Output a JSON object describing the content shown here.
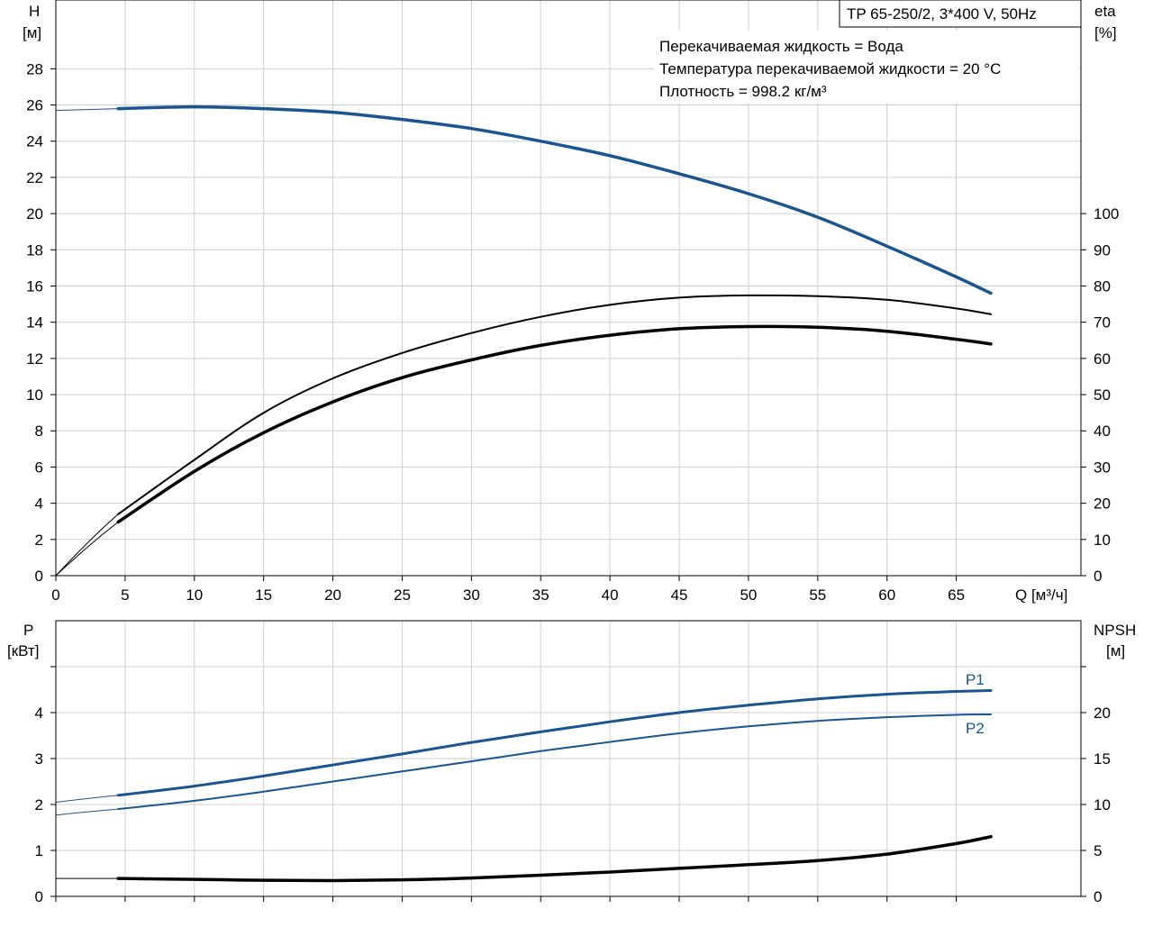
{
  "title_box": "TP 65-250/2, 3*400 V, 50Hz",
  "info_lines": [
    "Перекачиваемая жидкость = Вода",
    "Температура перекачиваемой жидкости = 20 °C",
    "Плотность = 998.2 кг/м³"
  ],
  "colors": {
    "blue": "#1a5590",
    "black": "#000000",
    "grid": "#cfcfcf"
  },
  "chart_data": [
    {
      "type": "line",
      "title": "",
      "x_axis": {
        "label": "Q [м³/ч]",
        "range": [
          0,
          74
        ],
        "ticks": [
          0,
          5,
          10,
          15,
          20,
          25,
          30,
          35,
          40,
          45,
          50,
          55,
          60,
          65
        ]
      },
      "y_axis_left": {
        "label_line1": "H",
        "label_line2": "[м]",
        "range": [
          0,
          31.8
        ],
        "ticks": [
          0,
          2,
          4,
          6,
          8,
          10,
          12,
          14,
          16,
          18,
          20,
          22,
          24,
          26,
          28
        ]
      },
      "y_axis_right": {
        "label_line1": "eta",
        "label_line2": "[%]",
        "range": [
          0,
          159
        ],
        "ticks": [
          0,
          10,
          20,
          30,
          40,
          50,
          60,
          70,
          80,
          90,
          100
        ]
      },
      "grid": true,
      "series": [
        {
          "axis": "left",
          "color": "#1a5590",
          "width": 3.5,
          "thin_lead": true,
          "x": [
            4.5,
            10,
            15,
            20,
            25,
            30,
            35,
            40,
            45,
            50,
            55,
            60,
            65,
            67.5
          ],
          "y": [
            25.8,
            25.9,
            25.8,
            25.6,
            25.2,
            24.7,
            24.0,
            23.2,
            22.2,
            21.1,
            19.8,
            18.2,
            16.5,
            15.6
          ],
          "lead_from": [
            0,
            25.7
          ]
        },
        {
          "axis": "right",
          "color": "#000000",
          "width": 2,
          "thin_lead": true,
          "x": [
            4.5,
            10,
            15,
            20,
            25,
            30,
            35,
            40,
            45,
            50,
            55,
            60,
            65,
            67.5
          ],
          "y": [
            17,
            32,
            45,
            54.5,
            61.5,
            67,
            71.5,
            74.8,
            76.8,
            77.4,
            77.2,
            76.2,
            73.8,
            72.2
          ],
          "lead_from": [
            0,
            0
          ]
        },
        {
          "axis": "right",
          "color": "#000000",
          "width": 3.5,
          "thin_lead": true,
          "x": [
            4.5,
            10,
            15,
            20,
            25,
            30,
            35,
            40,
            45,
            50,
            55,
            60,
            65,
            67.5
          ],
          "y": [
            14.8,
            28.8,
            39.5,
            48,
            54.7,
            59.6,
            63.6,
            66.4,
            68.2,
            68.8,
            68.6,
            67.5,
            65.3,
            64.0
          ],
          "lead_from": [
            0,
            0
          ]
        }
      ]
    },
    {
      "type": "line",
      "title": "",
      "x_axis": {
        "range": [
          0,
          74
        ],
        "ticks": [
          0,
          5,
          10,
          15,
          20,
          25,
          30,
          35,
          40,
          45,
          50,
          55,
          60,
          65
        ]
      },
      "y_axis_left": {
        "label_line1": "P",
        "label_line2": "[кВт]",
        "range": [
          0,
          6
        ],
        "ticks": [
          0,
          1,
          2,
          3,
          4
        ],
        "minor_ticks": [
          5
        ]
      },
      "y_axis_right": {
        "label_line1": "NPSH",
        "label_line2": "[м]",
        "range": [
          0,
          30
        ],
        "ticks": [
          0,
          5,
          10,
          15,
          20
        ],
        "minor_ticks": [
          25
        ]
      },
      "grid": true,
      "series": [
        {
          "name": "P1",
          "axis": "left",
          "color": "#1a5590",
          "width": 3,
          "thin_lead": true,
          "x": [
            4.5,
            10,
            15,
            20,
            25,
            30,
            35,
            40,
            45,
            50,
            55,
            60,
            65,
            67.5
          ],
          "y": [
            2.2,
            2.4,
            2.62,
            2.86,
            3.1,
            3.35,
            3.58,
            3.8,
            4.0,
            4.16,
            4.3,
            4.4,
            4.46,
            4.48
          ],
          "lead_from": [
            0,
            2.05
          ]
        },
        {
          "name": "P2",
          "axis": "left",
          "color": "#1a5590",
          "width": 2,
          "thin_lead": true,
          "x": [
            4.5,
            10,
            15,
            20,
            25,
            30,
            35,
            40,
            45,
            50,
            55,
            60,
            65,
            67.5
          ],
          "y": [
            1.9,
            2.08,
            2.28,
            2.5,
            2.72,
            2.94,
            3.16,
            3.36,
            3.55,
            3.7,
            3.82,
            3.9,
            3.95,
            3.96
          ],
          "lead_from": [
            0,
            1.77
          ]
        },
        {
          "axis": "right",
          "color": "#000000",
          "width": 3.5,
          "thin_lead": true,
          "x": [
            4.5,
            10,
            15,
            20,
            25,
            30,
            35,
            40,
            45,
            50,
            55,
            60,
            65,
            67.5
          ],
          "y": [
            1.95,
            1.85,
            1.75,
            1.72,
            1.8,
            2.0,
            2.3,
            2.65,
            3.05,
            3.45,
            3.9,
            4.6,
            5.75,
            6.5
          ],
          "lead_from": [
            0,
            1.95
          ]
        }
      ]
    }
  ]
}
